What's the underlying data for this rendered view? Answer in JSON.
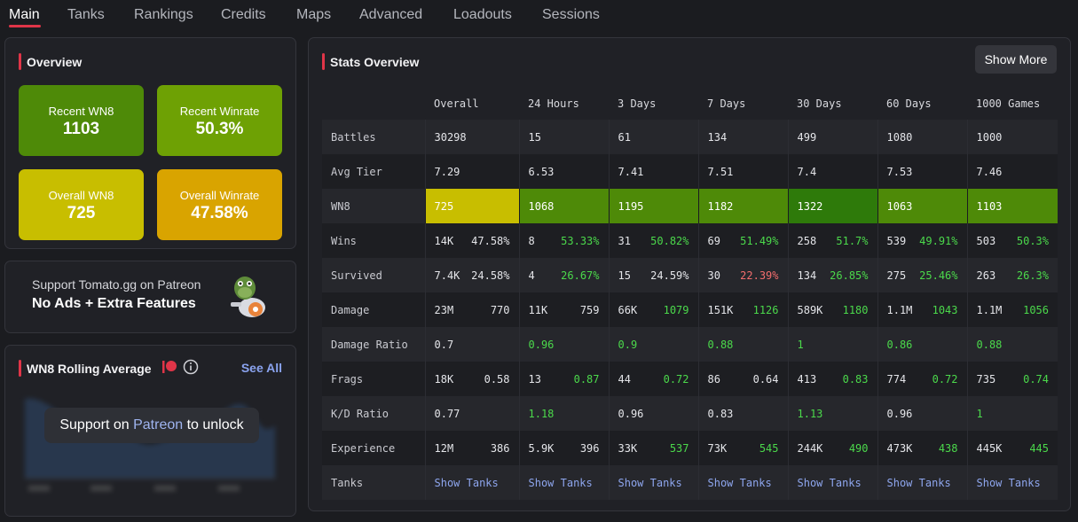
{
  "nav": {
    "tabs": [
      "Main",
      "Tanks",
      "Rankings",
      "Credits",
      "Maps",
      "Advanced",
      "Loadouts",
      "Sessions"
    ],
    "active": "Main"
  },
  "overview": {
    "title": "Overview",
    "cards": [
      {
        "label": "Recent WN8",
        "value": "1103",
        "color": "#4e8a08"
      },
      {
        "label": "Recent Winrate",
        "value": "50.3%",
        "color": "#6ea104"
      },
      {
        "label": "Overall WN8",
        "value": "725",
        "color": "#c8be00"
      },
      {
        "label": "Overall Winrate",
        "value": "47.58%",
        "color": "#d9a400"
      }
    ]
  },
  "promo": {
    "line1": "Support Tomato.gg on Patreon",
    "line2": "No Ads + Extra Features"
  },
  "rolling": {
    "title": "WN8 Rolling Average",
    "see_all": "See All",
    "unlock_pre": "Support on ",
    "unlock_link": "Patreon",
    "unlock_post": " to unlock"
  },
  "stats": {
    "title": "Stats Overview",
    "show_more": "Show More",
    "columns": [
      "Overall",
      "24 Hours",
      "3 Days",
      "7 Days",
      "30 Days",
      "60 Days",
      "1000 Games"
    ],
    "battles": {
      "label": "Battles",
      "values": [
        "30298",
        "15",
        "61",
        "134",
        "499",
        "1080",
        "1000"
      ]
    },
    "avg_tier": {
      "label": "Avg Tier",
      "values": [
        "7.29",
        "6.53",
        "7.41",
        "7.51",
        "7.4",
        "7.53",
        "7.46"
      ]
    },
    "wn8": {
      "label": "WN8",
      "values": [
        "725",
        "1068",
        "1195",
        "1182",
        "1322",
        "1063",
        "1103"
      ],
      "colors": [
        "#c8be00",
        "#4e8a08",
        "#4e8a08",
        "#4e8a08",
        "#2e7a0a",
        "#4e8a08",
        "#4e8a08"
      ]
    },
    "wins": {
      "label": "Wins",
      "a": [
        "14K",
        "8",
        "31",
        "69",
        "258",
        "539",
        "503"
      ],
      "b": [
        "47.58%",
        "53.33%",
        "50.82%",
        "51.49%",
        "51.7%",
        "49.91%",
        "50.3%"
      ],
      "b_tone": [
        "white",
        "green",
        "green",
        "green",
        "green",
        "green",
        "green"
      ]
    },
    "survived": {
      "label": "Survived",
      "a": [
        "7.4K",
        "4",
        "15",
        "30",
        "134",
        "275",
        "263"
      ],
      "b": [
        "24.58%",
        "26.67%",
        "24.59%",
        "22.39%",
        "26.85%",
        "25.46%",
        "26.3%"
      ],
      "b_tone": [
        "white",
        "green",
        "white",
        "red",
        "green",
        "green",
        "green"
      ]
    },
    "damage": {
      "label": "Damage",
      "a": [
        "23M",
        "11K",
        "66K",
        "151K",
        "589K",
        "1.1M",
        "1.1M"
      ],
      "b": [
        "770",
        "759",
        "1079",
        "1126",
        "1180",
        "1043",
        "1056"
      ],
      "b_tone": [
        "white",
        "white",
        "green",
        "green",
        "green",
        "green",
        "green"
      ]
    },
    "damage_ratio": {
      "label": "Damage Ratio",
      "values": [
        "0.7",
        "0.96",
        "0.9",
        "0.88",
        "1",
        "0.86",
        "0.88"
      ],
      "tone": [
        "white",
        "green",
        "green",
        "green",
        "green",
        "green",
        "green"
      ]
    },
    "frags": {
      "label": "Frags",
      "a": [
        "18K",
        "13",
        "44",
        "86",
        "413",
        "774",
        "735"
      ],
      "b": [
        "0.58",
        "0.87",
        "0.72",
        "0.64",
        "0.83",
        "0.72",
        "0.74"
      ],
      "b_tone": [
        "white",
        "green",
        "green",
        "white",
        "green",
        "green",
        "green"
      ]
    },
    "kd": {
      "label": "K/D Ratio",
      "values": [
        "0.77",
        "1.18",
        "0.96",
        "0.83",
        "1.13",
        "0.96",
        "1"
      ],
      "tone": [
        "white",
        "green",
        "white",
        "white",
        "green",
        "white",
        "green"
      ]
    },
    "experience": {
      "label": "Experience",
      "a": [
        "12M",
        "5.9K",
        "33K",
        "73K",
        "244K",
        "473K",
        "445K"
      ],
      "b": [
        "386",
        "396",
        "537",
        "545",
        "490",
        "438",
        "445"
      ],
      "b_tone": [
        "white",
        "white",
        "green",
        "green",
        "green",
        "green",
        "green"
      ]
    },
    "tanks": {
      "label": "Tanks",
      "link": "Show Tanks"
    }
  }
}
